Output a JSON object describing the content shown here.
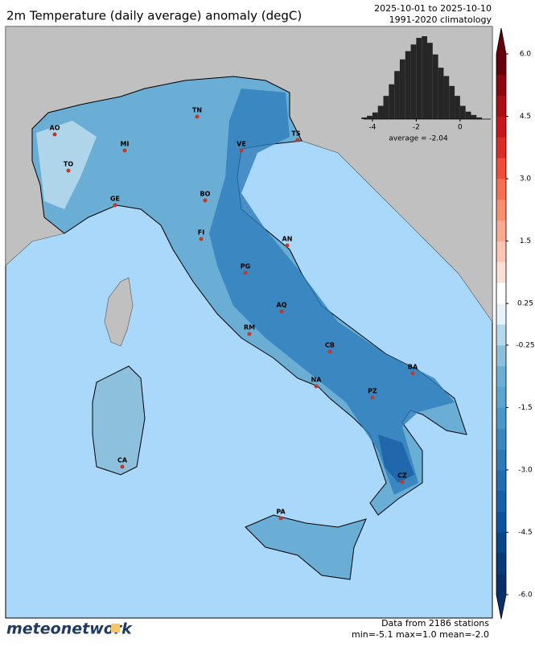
{
  "header": {
    "title": "2m Temperature (daily average) anomaly (degC)",
    "period": "2025-10-01 to 2025-10-10",
    "climatology": "1991-2020 climatology"
  },
  "map": {
    "cities": [
      "AO",
      "TO",
      "MI",
      "GE",
      "TN",
      "VE",
      "TS",
      "BO",
      "FI",
      "AN",
      "PG",
      "AQ",
      "RM",
      "CB",
      "BA",
      "NA",
      "PZ",
      "CZ",
      "PA",
      "CA"
    ]
  },
  "histogram": {
    "type": "histogram",
    "bins": [
      -4.5,
      -4.25,
      -4.0,
      -3.75,
      -3.5,
      -3.25,
      -3.0,
      -2.75,
      -2.5,
      -2.25,
      -2.0,
      -1.75,
      -1.5,
      -1.25,
      -1.0,
      -0.75,
      -0.5,
      -0.25,
      0.0,
      0.25,
      0.5,
      0.75,
      1.0
    ],
    "counts": [
      2,
      4,
      8,
      16,
      28,
      42,
      58,
      72,
      82,
      90,
      98,
      100,
      92,
      78,
      62,
      52,
      40,
      28,
      16,
      9,
      5,
      2
    ],
    "color": "#262626",
    "xlim": [
      -4.4,
      1.4
    ],
    "ylim": [
      0,
      100
    ],
    "xticks": [
      -4,
      -2,
      0
    ],
    "average_label": "average = -2.04"
  },
  "colorbar": {
    "boundaries": [
      -6,
      -5.5,
      -5,
      -4.5,
      -4,
      -3.5,
      -3,
      -2.5,
      -2,
      -1.5,
      -1,
      -0.5,
      -0.25,
      0,
      0.25,
      0.5,
      1,
      1.5,
      2,
      2.5,
      3,
      3.5,
      4,
      4.5,
      5,
      5.5,
      6
    ],
    "colors": [
      "#08306b",
      "#083a7a",
      "#08458a",
      "#0a549e",
      "#1361a8",
      "#1f6eb3",
      "#2b7bba",
      "#3a88c1",
      "#4a97c9",
      "#5ba3d0",
      "#6baed6",
      "#8cc0dd",
      "#b7d9ec",
      "#e6f3fa",
      "#ffffff",
      "#fde0d8",
      "#fcc5b4",
      "#fca98f",
      "#fc8d6e",
      "#f96e51",
      "#f14d3a",
      "#dd2b25",
      "#c8171c",
      "#ab0e14",
      "#8c0710",
      "#67000d"
    ],
    "ticks": [
      {
        "value": 6,
        "label": "6.0"
      },
      4.5,
      {
        "value": 3,
        "label": "3.0"
      },
      1.5,
      0.25,
      -0.25,
      -1.5,
      {
        "value": -3,
        "label": "-3.0"
      },
      -4.5,
      {
        "value": -6,
        "label": "-6.0"
      }
    ]
  },
  "footer": {
    "logo": "meteonetwork",
    "stations": "Data from 2186 stations",
    "stats": "min=-5.1 max=1.0 mean=-2.0"
  }
}
